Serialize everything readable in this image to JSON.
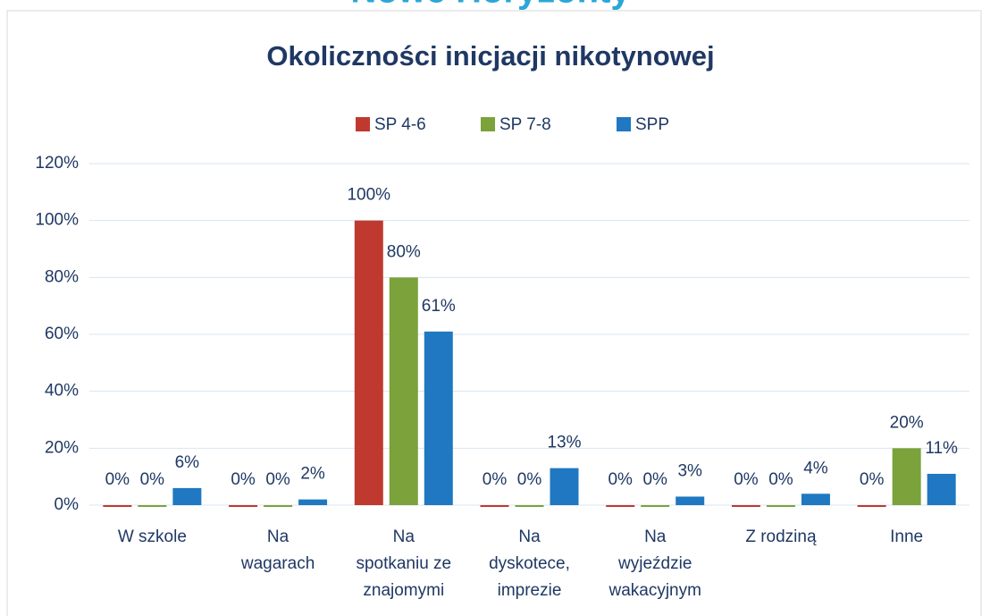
{
  "header": {
    "title": "Nowe Horyzonty"
  },
  "chart_data": {
    "type": "bar",
    "title": "Okoliczności inicjacji nikotynowej",
    "categories": [
      [
        "W szkole"
      ],
      [
        "Na",
        "wagarach"
      ],
      [
        "Na",
        "spotkaniu ze",
        "znajomymi"
      ],
      [
        "Na",
        "dyskotece,",
        "imprezie"
      ],
      [
        "Na",
        "wyjeździe",
        "wakacyjnym"
      ],
      [
        "Z rodziną"
      ],
      [
        "Inne"
      ]
    ],
    "series": [
      {
        "name": "SP 4-6",
        "color": "#c0392f",
        "values": [
          0,
          0,
          100,
          0,
          0,
          0,
          0
        ],
        "value_labels": [
          "0%",
          "0%",
          "100%",
          "0%",
          "0%",
          "0%",
          "0%"
        ]
      },
      {
        "name": "SP 7-8",
        "color": "#7ba23b",
        "values": [
          0,
          0,
          80,
          0,
          0,
          0,
          20
        ],
        "value_labels": [
          "0%",
          "0%",
          "80%",
          "0%",
          "0%",
          "0%",
          "20%"
        ]
      },
      {
        "name": "SPP",
        "color": "#1f78c1",
        "values": [
          6,
          2,
          61,
          13,
          3,
          4,
          11
        ],
        "value_labels": [
          "6%",
          "2%",
          "61%",
          "13%",
          "3%",
          "4%",
          "11%"
        ]
      }
    ],
    "ylim": [
      0,
      120
    ],
    "yticks": [
      {
        "value": 0,
        "label": "0%"
      },
      {
        "value": 20,
        "label": "20%"
      },
      {
        "value": 40,
        "label": "40%"
      },
      {
        "value": 60,
        "label": "60%"
      },
      {
        "value": 80,
        "label": "80%"
      },
      {
        "value": 100,
        "label": "100%"
      },
      {
        "value": 120,
        "label": "120%"
      }
    ],
    "grid": true,
    "legend": "top"
  }
}
